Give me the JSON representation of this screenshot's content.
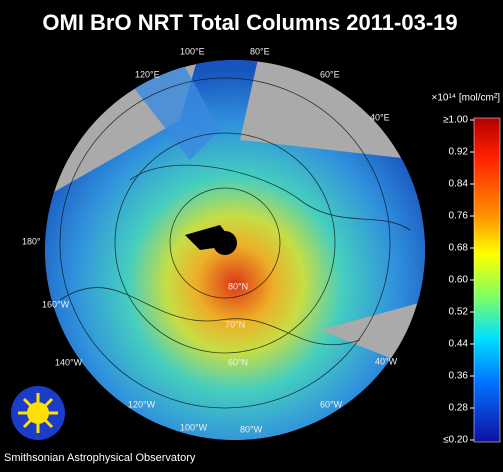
{
  "title": "OMI BrO NRT Total Columns 2011-03-19",
  "colorbar": {
    "unit": "×10¹⁴ [mol/cm²]",
    "range": [
      0.2,
      1.0
    ],
    "ticks": [
      {
        "value": 1.0,
        "label": "≥1.00"
      },
      {
        "value": 0.92,
        "label": "0.92"
      },
      {
        "value": 0.84,
        "label": "0.84"
      },
      {
        "value": 0.76,
        "label": "0.76"
      },
      {
        "value": 0.68,
        "label": "0.68"
      },
      {
        "value": 0.6,
        "label": "0.60"
      },
      {
        "value": 0.52,
        "label": "0.52"
      },
      {
        "value": 0.44,
        "label": "0.44"
      },
      {
        "value": 0.36,
        "label": "0.36"
      },
      {
        "value": 0.28,
        "label": "0.28"
      },
      {
        "value": 0.2,
        "label": "≤0.20"
      }
    ]
  },
  "map_labels": [
    "100°E",
    "80°E",
    "120°E",
    "60°E",
    "40°E",
    "180°",
    "160°W",
    "140°W",
    "120°W",
    "100°W",
    "80°W",
    "60°W",
    "40°W",
    "80°N",
    "70°N",
    "60°N"
  ],
  "footer": "Smithsonian Astrophysical Observatory"
}
